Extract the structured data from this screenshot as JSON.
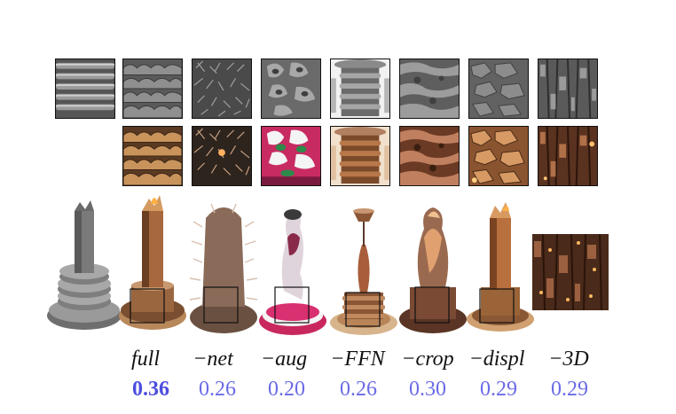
{
  "columns": [
    {
      "label": "full",
      "score": "0.36",
      "best": true
    },
    {
      "label": "−net",
      "score": "0.26",
      "best": false
    },
    {
      "label": "−aug",
      "score": "0.20",
      "best": false
    },
    {
      "label": "−FFN",
      "score": "0.26",
      "best": false
    },
    {
      "label": "−crop",
      "score": "0.30",
      "best": false
    },
    {
      "label": "−displ",
      "score": "0.29",
      "best": false
    },
    {
      "label": "−3D",
      "score": "0.29",
      "best": false
    }
  ],
  "colors": {
    "score": "#6a6ae8",
    "score_best": "#4c4cdf",
    "gray_base": "#8a8a8a",
    "wood": "#8a5a34",
    "pink": "#d4306a"
  }
}
